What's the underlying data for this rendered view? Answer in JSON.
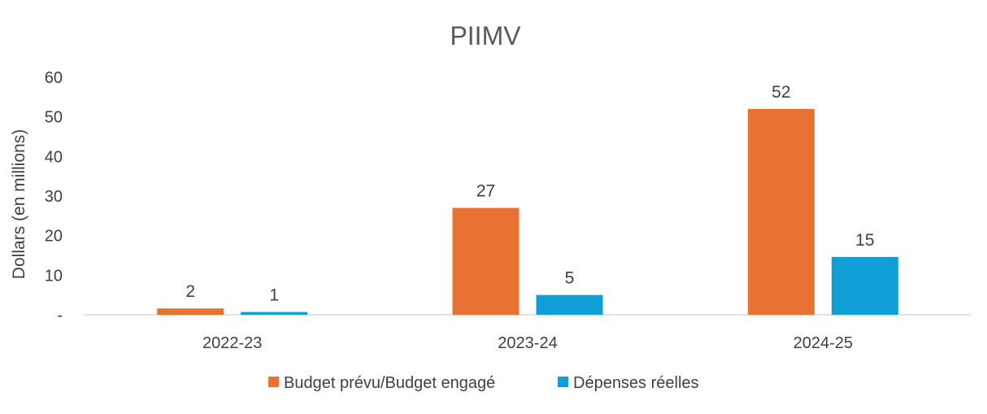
{
  "chart_data": {
    "type": "bar",
    "title": "PIIMV",
    "xlabel": "",
    "ylabel": "Dollars (en millions)",
    "ylim": [
      0,
      60
    ],
    "yticks": [
      0,
      10,
      20,
      30,
      40,
      50,
      60
    ],
    "ytick_labels": [
      "-",
      "10",
      "20",
      "30",
      "40",
      "50",
      "60"
    ],
    "categories": [
      "2022-23",
      "2023-24",
      "2024-25"
    ],
    "series": [
      {
        "name": "Budget prévu/Budget engagé",
        "color": "#E97132",
        "values": [
          1.6,
          27,
          52
        ],
        "labels": [
          "2",
          "27",
          "52"
        ]
      },
      {
        "name": "Dépenses réelles",
        "color": "#0F9ED5",
        "values": [
          0.7,
          5,
          14.6
        ],
        "labels": [
          "1",
          "5",
          "15"
        ]
      }
    ],
    "gridlines": false,
    "legend_position": "bottom",
    "data_labels": true
  }
}
